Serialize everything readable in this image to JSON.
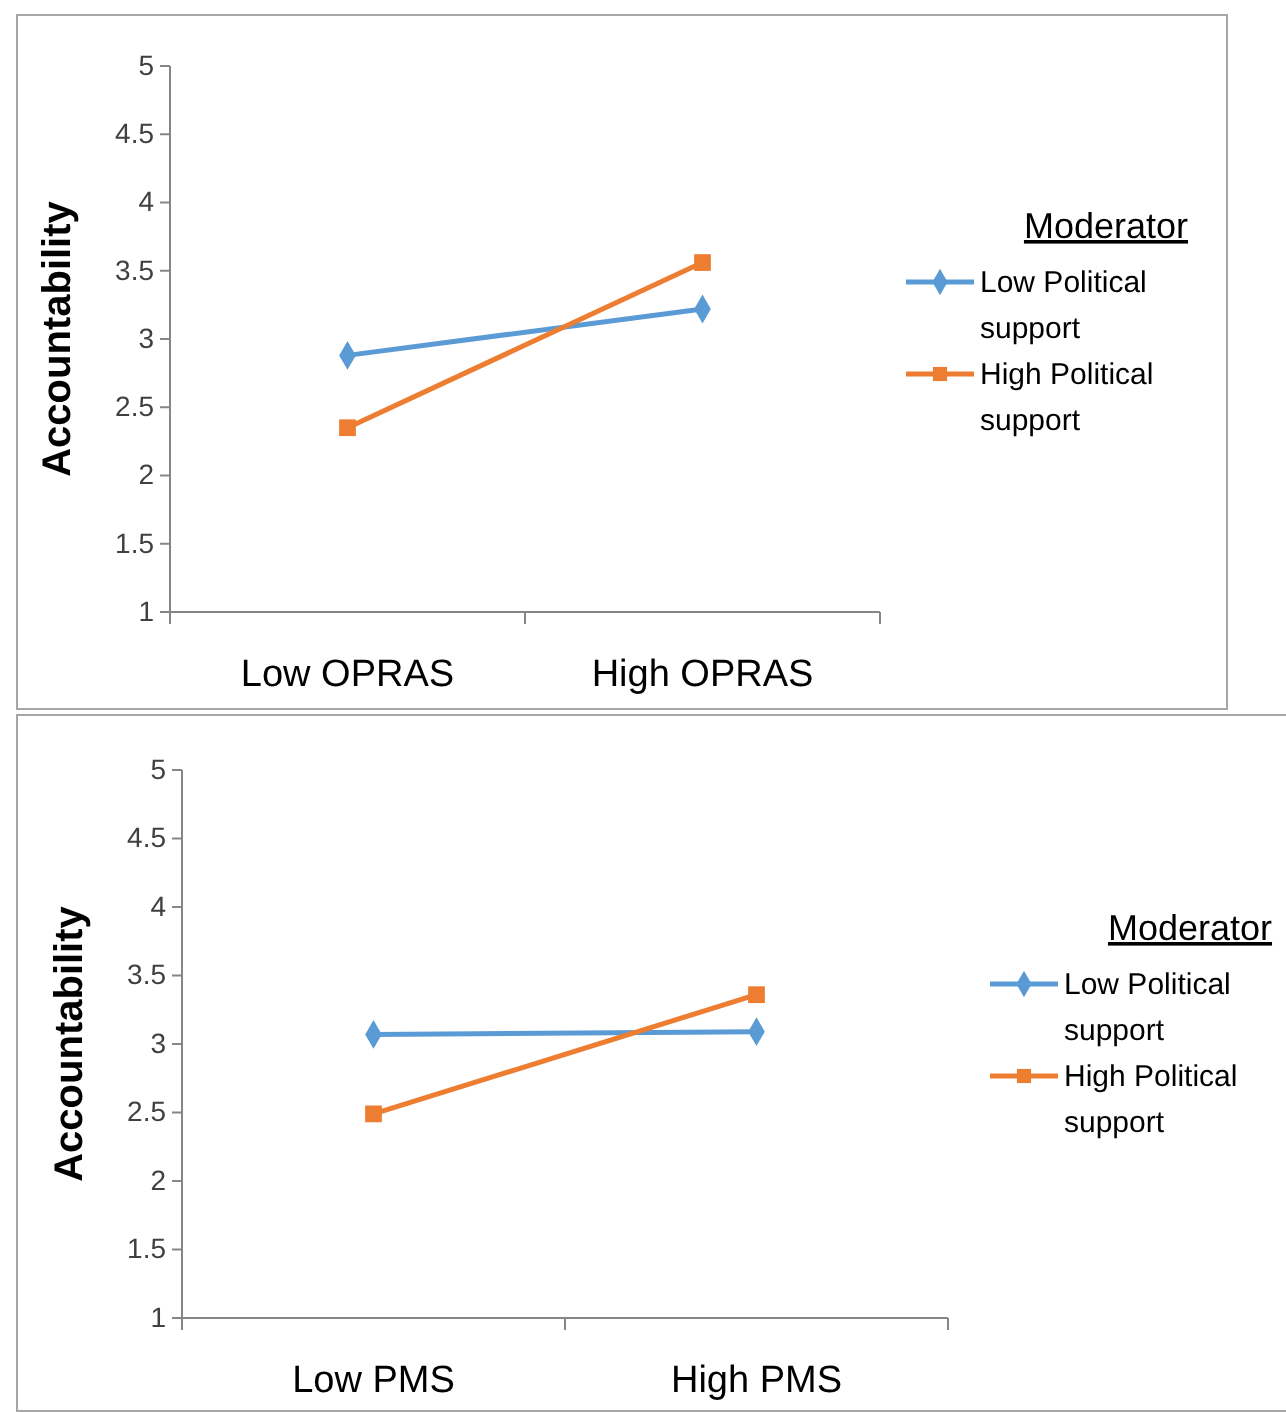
{
  "chart_data": [
    {
      "type": "line",
      "categories": [
        "Low OPRAS",
        "High OPRAS"
      ],
      "ylabel": "Accountability",
      "legend_title": "Moderator",
      "legend": "right",
      "ylim": [
        1,
        5
      ],
      "yticks": [
        1,
        1.5,
        2,
        2.5,
        3,
        3.5,
        4,
        4.5,
        5
      ],
      "grid": false,
      "series": [
        {
          "name": "Low Political support",
          "color": "#5b9bd5",
          "marker": "diamond",
          "values": [
            2.88,
            3.22
          ]
        },
        {
          "name": "High Political support",
          "color": "#ed7d31",
          "marker": "square",
          "values": [
            2.35,
            3.56
          ]
        }
      ]
    },
    {
      "type": "line",
      "categories": [
        "Low PMS",
        "High PMS"
      ],
      "ylabel": "Accountability",
      "legend_title": "Moderator",
      "legend": "right",
      "ylim": [
        1,
        5
      ],
      "yticks": [
        1,
        1.5,
        2,
        2.5,
        3,
        3.5,
        4,
        4.5,
        5
      ],
      "grid": false,
      "series": [
        {
          "name": "Low Political support",
          "color": "#5b9bd5",
          "marker": "diamond",
          "values": [
            3.07,
            3.09
          ]
        },
        {
          "name": "High Political support",
          "color": "#ed7d31",
          "marker": "square",
          "values": [
            2.49,
            3.36
          ]
        }
      ]
    }
  ]
}
